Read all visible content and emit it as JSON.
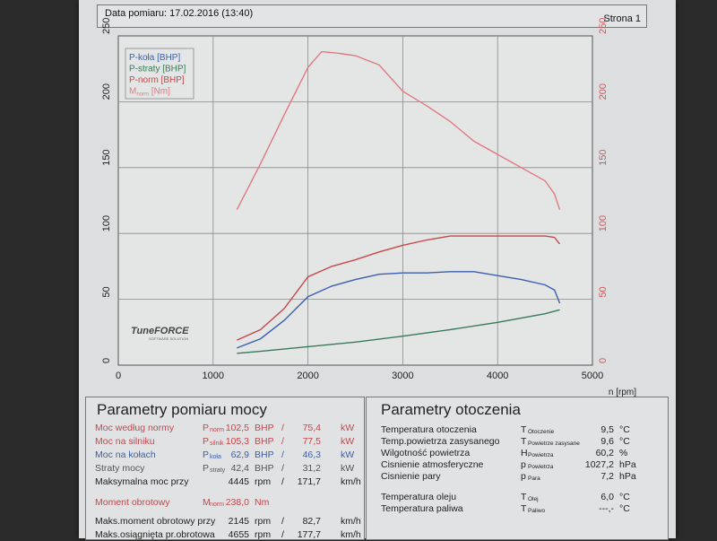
{
  "header": {
    "date": "Data pomiaru: 17.02.2016 (13:40)",
    "page": "Strona 1"
  },
  "chart_data": {
    "type": "line",
    "x_label": "n [rpm]",
    "x_range": [
      0,
      5000
    ],
    "x_ticks": [
      "0",
      "1000",
      "2000",
      "3000",
      "4000",
      "5000"
    ],
    "y_left_range": [
      0,
      250
    ],
    "y_left_ticks": [
      "0",
      "50",
      "100",
      "150",
      "200",
      "250"
    ],
    "y_right_range": [
      0,
      250
    ],
    "y_right_ticks": [
      "0",
      "50",
      "100",
      "150",
      "200",
      "250"
    ],
    "grid": true,
    "legend_position": "top-left",
    "legend": [
      {
        "name": "P-koła [BHP]",
        "color": "#3b5fb0"
      },
      {
        "name": "P-straty [BHP]",
        "color": "#3a7a5a"
      },
      {
        "name": "P-norm [BHP]",
        "color": "#c8474b"
      },
      {
        "name": "M",
        "sub": "norm",
        "suffix": " [Nm]",
        "color": "#e07a7f"
      }
    ],
    "logo": {
      "main": "TuneFORCE",
      "tagline": "SOFTWARE SOLUTION"
    },
    "series": [
      {
        "name": "P-koła [BHP]",
        "color": "#3b5fb0",
        "axis": "left",
        "x": [
          1250,
          1500,
          1750,
          2000,
          2250,
          2500,
          2750,
          3000,
          3250,
          3500,
          3750,
          4000,
          4250,
          4500,
          4600,
          4655
        ],
        "y": [
          13,
          20,
          34,
          52,
          60,
          65,
          69,
          70,
          70,
          71,
          71,
          68,
          65,
          61,
          57,
          47
        ]
      },
      {
        "name": "P-straty [BHP]",
        "color": "#3a7a5a",
        "axis": "left",
        "x": [
          1250,
          1500,
          2000,
          2500,
          3000,
          3500,
          4000,
          4500,
          4655
        ],
        "y": [
          9,
          10.5,
          14,
          17.5,
          22,
          27,
          32.5,
          39,
          42
        ]
      },
      {
        "name": "P-norm [BHP]",
        "color": "#c8474b",
        "axis": "left",
        "x": [
          1250,
          1500,
          1750,
          2000,
          2250,
          2500,
          2750,
          3000,
          3250,
          3500,
          3750,
          4000,
          4250,
          4500,
          4600,
          4655
        ],
        "y": [
          19,
          27,
          43,
          67,
          75,
          80,
          86,
          91,
          95,
          98,
          98,
          98,
          98,
          98,
          97,
          92
        ]
      },
      {
        "name": "M",
        "color": "#e07a7f",
        "axis": "right",
        "x": [
          1250,
          1500,
          1750,
          2000,
          2145,
          2300,
          2500,
          2750,
          3000,
          3250,
          3500,
          3750,
          4000,
          4250,
          4500,
          4600,
          4655
        ],
        "y": [
          118,
          153,
          190,
          226,
          238,
          237,
          235,
          228,
          208,
          197,
          185,
          170,
          160,
          150,
          140,
          130,
          118
        ]
      }
    ]
  },
  "power_panel": {
    "title": "Parametry pomiaru mocy",
    "rows": [
      {
        "label": "Moc według normy",
        "sym": "P",
        "sub": "norm",
        "v1": "102,5",
        "u1": "BHP",
        "sep": "/",
        "v2": "75,4",
        "u2": "kW",
        "color": "red"
      },
      {
        "label": "Moc na silniku",
        "sym": "P",
        "sub": "silnik",
        "v1": "105,3",
        "u1": "BHP",
        "sep": "/",
        "v2": "77,5",
        "u2": "kW",
        "color": "red"
      },
      {
        "label": "Moc na kołach",
        "sym": "P",
        "sub": "koła",
        "v1": "62,9",
        "u1": "BHP",
        "sep": "/",
        "v2": "46,3",
        "u2": "kW",
        "color": "blue"
      },
      {
        "label": "Straty mocy",
        "sym": "P",
        "sub": "straty",
        "v1": "42,4",
        "u1": "BHP",
        "sep": "/",
        "v2": "31,2",
        "u2": "kW",
        "color": "gray"
      },
      {
        "label": "Maksymalna moc przy",
        "sym": "",
        "sub": "",
        "v1": "4445",
        "u1": "rpm",
        "sep": "/",
        "v2": "171,7",
        "u2": "km/h",
        "color": "black"
      },
      {
        "label": "Moment obrotowy",
        "sym": "M",
        "sub": "norm",
        "v1": "238,0",
        "u1": "Nm",
        "sep": "",
        "v2": "",
        "u2": "",
        "color": "red"
      },
      {
        "label": "Maks.moment obrotowy przy",
        "sym": "",
        "sub": "",
        "v1": "2145",
        "u1": "rpm",
        "sep": "/",
        "v2": "82,7",
        "u2": "km/h",
        "color": "black"
      },
      {
        "label": "Maks.osiągnięta pr.obrotowa",
        "sym": "",
        "sub": "",
        "v1": "4655",
        "u1": "rpm",
        "sep": "/",
        "v2": "177,7",
        "u2": "km/h",
        "color": "black"
      }
    ]
  },
  "env_panel": {
    "title": "Parametry otoczenia",
    "rows": [
      {
        "label": "Temperatura otoczenia",
        "sym": "T",
        "sub": "Otoczenie",
        "value": "9,5",
        "unit": "°C"
      },
      {
        "label": "Temp.powietrza zasysanego",
        "sym": "T",
        "sub": "Powietrze zasysane",
        "value": "9,6",
        "unit": "°C"
      },
      {
        "label": "Wilgotność powietrza",
        "sym": "H",
        "sub": "Powietrza",
        "value": "60,2",
        "unit": "%"
      },
      {
        "label": "Cisnienie atmosferyczne",
        "sym": "p",
        "sub": "Powietrza",
        "value": "1027,2",
        "unit": "hPa"
      },
      {
        "label": "Cisnienie pary",
        "sym": "p",
        "sub": "Para",
        "value": "7,2",
        "unit": "hPa"
      },
      {
        "label": "Temperatura oleju",
        "sym": "T",
        "sub": "Olej",
        "value": "6,0",
        "unit": "°C"
      },
      {
        "label": "Temperatura paliwa",
        "sym": "T",
        "sub": "Paliwo",
        "value": "---,-",
        "unit": "°C"
      }
    ]
  }
}
